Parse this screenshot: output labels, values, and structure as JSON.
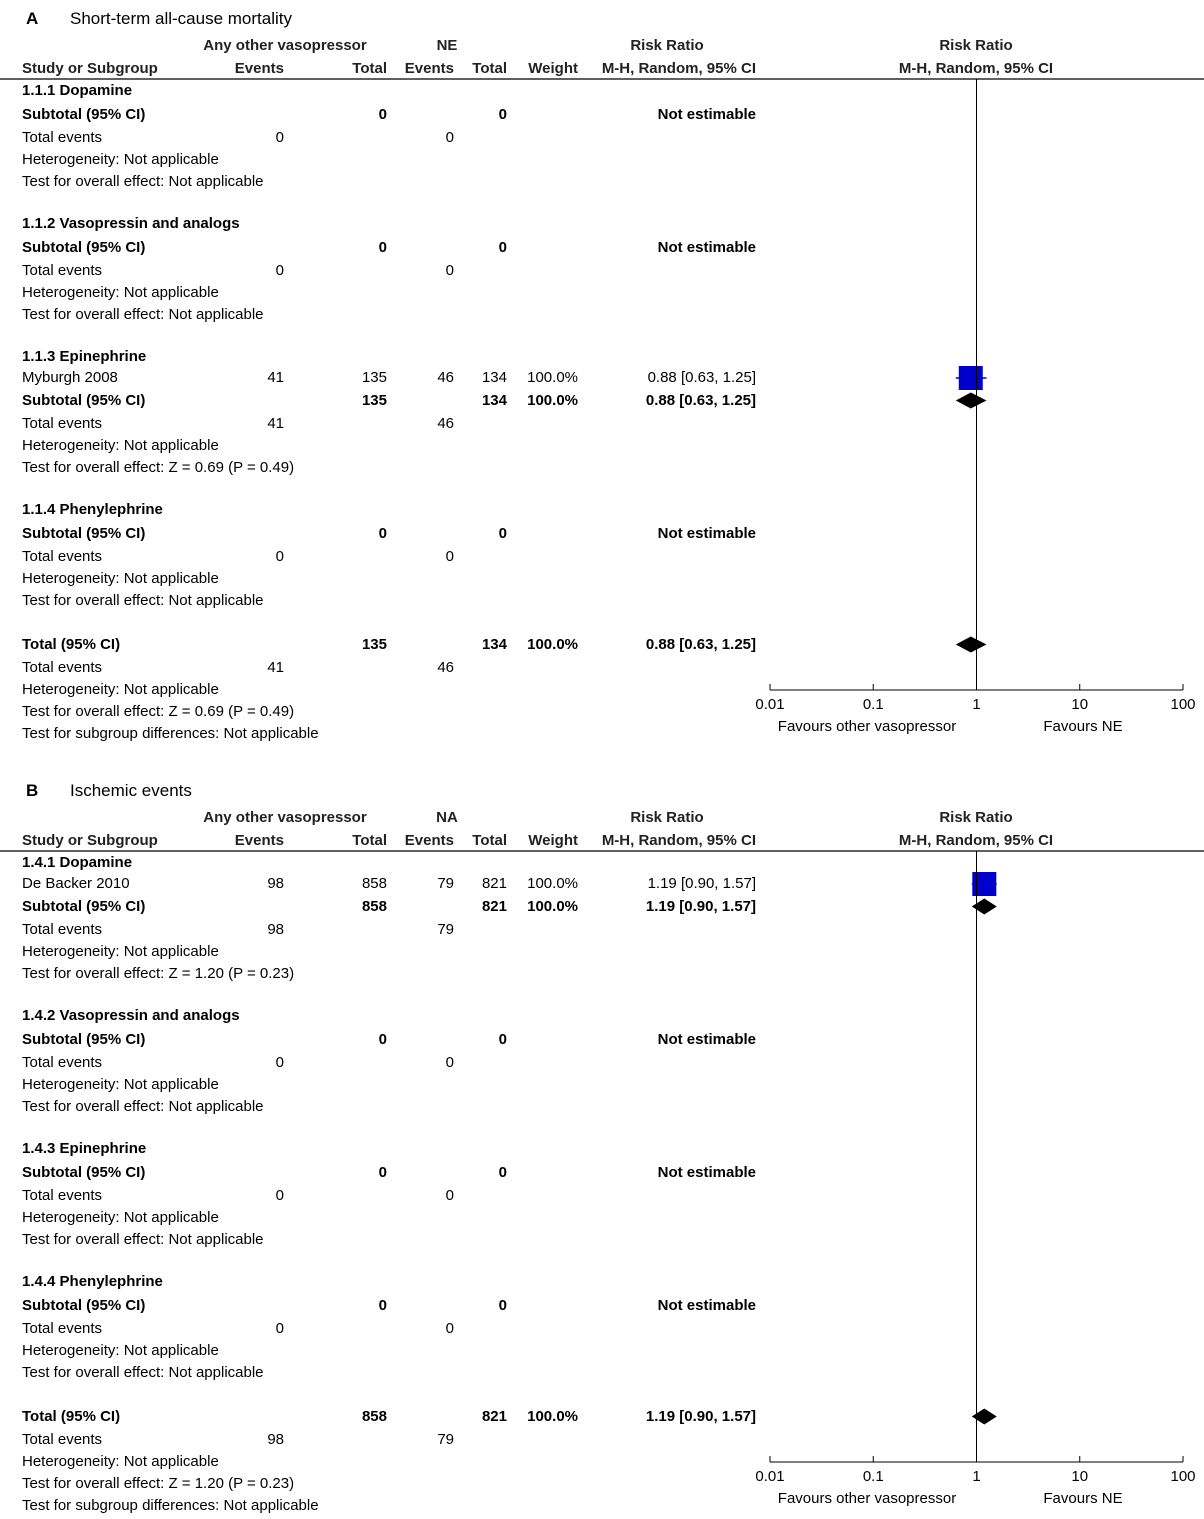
{
  "chart_data": [
    {
      "type": "forest",
      "panel_letter": "A",
      "title": "Short-term all-cause mortality",
      "header": {
        "group1": "Any other vasopressor",
        "group2": "NE",
        "rr_col_title": "Risk Ratio",
        "rr_col_sub": "M-H, Random, 95% CI",
        "plot_title": "Risk Ratio",
        "plot_sub": "M-H, Random, 95% CI",
        "study": "Study or Subgroup",
        "events": "Events",
        "total": "Total",
        "weight": "Weight"
      },
      "rows": [
        {
          "kind": "group",
          "label": "1.1.1 Dopamine"
        },
        {
          "kind": "subtotal",
          "label": "Subtotal (95% CI)",
          "t1": "0",
          "t2": "0",
          "rr": "Not estimable"
        },
        {
          "kind": "plain",
          "label": "Total events",
          "e1": "0",
          "e2": "0"
        },
        {
          "kind": "plain",
          "label": "Heterogeneity: Not applicable"
        },
        {
          "kind": "plain",
          "label": "Test for overall effect: Not applicable"
        },
        {
          "kind": "gap"
        },
        {
          "kind": "group",
          "label": "1.1.2 Vasopressin and analogs"
        },
        {
          "kind": "subtotal",
          "label": "Subtotal (95% CI)",
          "t1": "0",
          "t2": "0",
          "rr": "Not estimable"
        },
        {
          "kind": "plain",
          "label": "Total events",
          "e1": "0",
          "e2": "0"
        },
        {
          "kind": "plain",
          "label": "Heterogeneity: Not applicable"
        },
        {
          "kind": "plain",
          "label": "Test for overall effect: Not applicable"
        },
        {
          "kind": "gap"
        },
        {
          "kind": "group",
          "label": "1.1.3 Epinephrine"
        },
        {
          "kind": "study",
          "label": "Myburgh 2008",
          "e1": "41",
          "t1": "135",
          "e2": "46",
          "t2": "134",
          "w": "100.0%",
          "rr": "0.88 [0.63, 1.25]",
          "est": 0.88,
          "lo": 0.63,
          "hi": 1.25,
          "weight": 100
        },
        {
          "kind": "subtotal",
          "label": "Subtotal (95% CI)",
          "t1": "135",
          "t2": "134",
          "w": "100.0%",
          "rr": "0.88 [0.63, 1.25]",
          "est": 0.88,
          "lo": 0.63,
          "hi": 1.25
        },
        {
          "kind": "plain",
          "label": "Total events",
          "e1": "41",
          "e2": "46"
        },
        {
          "kind": "plain",
          "label": "Heterogeneity: Not applicable"
        },
        {
          "kind": "plain",
          "label": "Test for overall effect: Z = 0.69 (P = 0.49)"
        },
        {
          "kind": "gap"
        },
        {
          "kind": "group",
          "label": "1.1.4 Phenylephrine"
        },
        {
          "kind": "subtotal",
          "label": "Subtotal (95% CI)",
          "t1": "0",
          "t2": "0",
          "rr": "Not estimable"
        },
        {
          "kind": "plain",
          "label": "Total events",
          "e1": "0",
          "e2": "0"
        },
        {
          "kind": "plain",
          "label": "Heterogeneity: Not applicable"
        },
        {
          "kind": "plain",
          "label": "Test for overall effect: Not applicable"
        },
        {
          "kind": "gap"
        },
        {
          "kind": "subtotal",
          "label": "Total (95% CI)",
          "t1": "135",
          "t2": "134",
          "w": "100.0%",
          "rr": "0.88 [0.63, 1.25]",
          "est": 0.88,
          "lo": 0.63,
          "hi": 1.25
        },
        {
          "kind": "plain",
          "label": "Total events",
          "e1": "41",
          "e2": "46"
        },
        {
          "kind": "plain",
          "label": "Heterogeneity: Not applicable"
        },
        {
          "kind": "plain",
          "label": "Test for overall effect: Z = 0.69 (P = 0.49)"
        },
        {
          "kind": "plain",
          "label": "Test for subgroup differences: Not applicable"
        }
      ],
      "x_axis": {
        "scale": "log",
        "ticks": [
          "0.01",
          "0.1",
          "1",
          "10",
          "100"
        ],
        "tick_values": [
          0.01,
          0.1,
          1,
          10,
          100
        ]
      },
      "favours_left": "Favours other vasopressor",
      "favours_right": "Favours NE"
    },
    {
      "type": "forest",
      "panel_letter": "B",
      "title": "Ischemic events",
      "header": {
        "group1": "Any other vasopressor",
        "group2": "NA",
        "rr_col_title": "Risk Ratio",
        "rr_col_sub": "M-H, Random, 95% CI",
        "plot_title": "Risk Ratio",
        "plot_sub": "M-H, Random, 95% CI",
        "study": "Study or Subgroup",
        "events": "Events",
        "total": "Total",
        "weight": "Weight"
      },
      "rows": [
        {
          "kind": "group",
          "label": "1.4.1 Dopamine"
        },
        {
          "kind": "study",
          "label": "De Backer 2010",
          "e1": "98",
          "t1": "858",
          "e2": "79",
          "t2": "821",
          "w": "100.0%",
          "rr": "1.19 [0.90, 1.57]",
          "est": 1.19,
          "lo": 0.9,
          "hi": 1.57,
          "weight": 100
        },
        {
          "kind": "subtotal",
          "label": "Subtotal (95% CI)",
          "t1": "858",
          "t2": "821",
          "w": "100.0%",
          "rr": "1.19 [0.90, 1.57]",
          "est": 1.19,
          "lo": 0.9,
          "hi": 1.57
        },
        {
          "kind": "plain",
          "label": "Total events",
          "e1": "98",
          "e2": "79"
        },
        {
          "kind": "plain",
          "label": "Heterogeneity: Not applicable"
        },
        {
          "kind": "plain",
          "label": "Test for overall effect: Z = 1.20 (P = 0.23)"
        },
        {
          "kind": "gap"
        },
        {
          "kind": "group",
          "label": "1.4.2 Vasopressin and analogs"
        },
        {
          "kind": "subtotal",
          "label": "Subtotal (95% CI)",
          "t1": "0",
          "t2": "0",
          "rr": "Not estimable"
        },
        {
          "kind": "plain",
          "label": "Total events",
          "e1": "0",
          "e2": "0"
        },
        {
          "kind": "plain",
          "label": "Heterogeneity: Not applicable"
        },
        {
          "kind": "plain",
          "label": "Test for overall effect: Not applicable"
        },
        {
          "kind": "gap"
        },
        {
          "kind": "group",
          "label": "1.4.3 Epinephrine"
        },
        {
          "kind": "subtotal",
          "label": "Subtotal (95% CI)",
          "t1": "0",
          "t2": "0",
          "rr": "Not estimable"
        },
        {
          "kind": "plain",
          "label": "Total events",
          "e1": "0",
          "e2": "0"
        },
        {
          "kind": "plain",
          "label": "Heterogeneity: Not applicable"
        },
        {
          "kind": "plain",
          "label": "Test for overall effect: Not applicable"
        },
        {
          "kind": "gap"
        },
        {
          "kind": "group",
          "label": "1.4.4 Phenylephrine"
        },
        {
          "kind": "subtotal",
          "label": "Subtotal (95% CI)",
          "t1": "0",
          "t2": "0",
          "rr": "Not estimable"
        },
        {
          "kind": "plain",
          "label": "Total events",
          "e1": "0",
          "e2": "0"
        },
        {
          "kind": "plain",
          "label": "Heterogeneity: Not applicable"
        },
        {
          "kind": "plain",
          "label": "Test for overall effect: Not applicable"
        },
        {
          "kind": "gap"
        },
        {
          "kind": "subtotal",
          "label": "Total (95% CI)",
          "t1": "858",
          "t2": "821",
          "w": "100.0%",
          "rr": "1.19 [0.90, 1.57]",
          "est": 1.19,
          "lo": 0.9,
          "hi": 1.57
        },
        {
          "kind": "plain",
          "label": "Total events",
          "e1": "98",
          "e2": "79"
        },
        {
          "kind": "plain",
          "label": "Heterogeneity: Not applicable"
        },
        {
          "kind": "plain",
          "label": "Test for overall effect: Z = 1.20 (P = 0.23)"
        },
        {
          "kind": "plain",
          "label": "Test for subgroup differences: Not applicable"
        }
      ],
      "x_axis": {
        "scale": "log",
        "ticks": [
          "0.01",
          "0.1",
          "1",
          "10",
          "100"
        ],
        "tick_values": [
          0.01,
          0.1,
          1,
          10,
          100
        ]
      },
      "favours_left": "Favours other vasopressor",
      "favours_right": "Favours NE"
    }
  ],
  "colors": {
    "study_marker": "#0000cc",
    "diamond": "#000000",
    "line": "#000000"
  }
}
